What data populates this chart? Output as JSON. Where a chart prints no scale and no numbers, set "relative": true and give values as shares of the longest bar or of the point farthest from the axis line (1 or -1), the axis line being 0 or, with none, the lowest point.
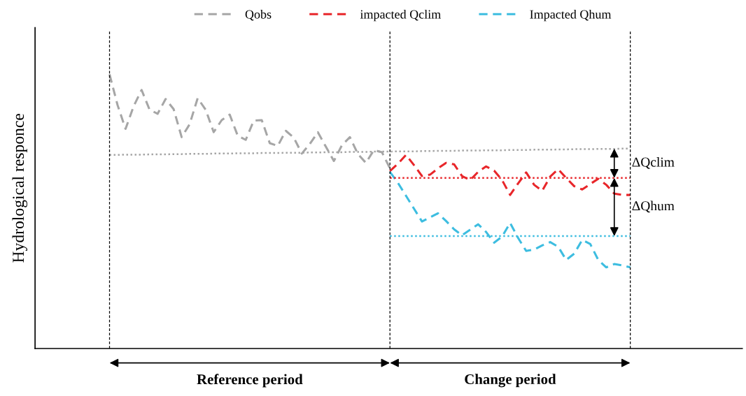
{
  "chart_data": {
    "type": "line",
    "relative": true,
    "ylabel": "Hydrological responce",
    "legend": "top",
    "categories": [
      null,
      null,
      null,
      null,
      null,
      null,
      null,
      null,
      null,
      null,
      null,
      null,
      null,
      null,
      null,
      null,
      null,
      null,
      null,
      null,
      null,
      null,
      null,
      null,
      null,
      null,
      null,
      null,
      null,
      null,
      null,
      null,
      null,
      null,
      null,
      null,
      null,
      null,
      null,
      null,
      null,
      null,
      null,
      null,
      null,
      null,
      null,
      null,
      null,
      null,
      null,
      null,
      null,
      null,
      null,
      null,
      null,
      null,
      null,
      null,
      null,
      null,
      null,
      null,
      null,
      null
    ],
    "series": [
      {
        "name": "Qobs",
        "color": "#a6a6a6",
        "line_style": "dashed",
        "values": [
          1.0,
          0.888,
          0.801,
          0.883,
          0.943,
          0.871,
          0.856,
          0.91,
          0.873,
          0.771,
          0.818,
          0.913,
          0.871,
          0.789,
          0.833,
          0.853,
          0.776,
          0.761,
          0.831,
          0.833,
          0.749,
          0.739,
          0.794,
          0.769,
          0.711,
          0.746,
          0.789,
          0.736,
          0.684,
          0.741,
          0.771,
          0.709,
          0.677,
          0.724,
          0.716,
          0.657,
          null,
          null,
          null,
          null,
          null,
          null,
          null,
          null,
          null,
          null,
          null,
          null,
          null,
          null,
          null,
          null,
          null,
          null,
          null,
          null,
          null,
          null,
          null,
          null,
          null,
          null,
          null,
          null,
          null,
          null
        ]
      },
      {
        "name": "impacted Qclim",
        "color": "#e8262a",
        "line_style": "dashed",
        "values": [
          null,
          null,
          null,
          null,
          null,
          null,
          null,
          null,
          null,
          null,
          null,
          null,
          null,
          null,
          null,
          null,
          null,
          null,
          null,
          null,
          null,
          null,
          null,
          null,
          null,
          null,
          null,
          null,
          null,
          null,
          null,
          null,
          null,
          null,
          null,
          0.647,
          0.674,
          0.706,
          0.669,
          0.629,
          0.634,
          0.657,
          0.677,
          0.672,
          0.629,
          0.614,
          0.644,
          0.664,
          0.649,
          0.614,
          0.56,
          0.602,
          0.642,
          0.597,
          0.575,
          0.627,
          0.654,
          0.622,
          0.592,
          0.58,
          0.6,
          0.619,
          0.597,
          0.565,
          0.56,
          0.56
        ]
      },
      {
        "name": "Impacted Qhum",
        "color": "#3dbde0",
        "line_style": "dashed",
        "values": [
          null,
          null,
          null,
          null,
          null,
          null,
          null,
          null,
          null,
          null,
          null,
          null,
          null,
          null,
          null,
          null,
          null,
          null,
          null,
          null,
          null,
          null,
          null,
          null,
          null,
          null,
          null,
          null,
          null,
          null,
          null,
          null,
          null,
          null,
          null,
          0.644,
          0.604,
          0.557,
          0.51,
          0.463,
          0.478,
          0.493,
          0.465,
          0.435,
          0.413,
          0.433,
          0.453,
          0.425,
          0.386,
          0.408,
          0.458,
          0.403,
          0.356,
          0.361,
          0.376,
          0.388,
          0.371,
          0.323,
          0.346,
          0.396,
          0.381,
          0.323,
          0.296,
          0.308,
          0.303,
          0.296
        ]
      },
      {
        "color": "#a6a6a6",
        "line_style": "dotted",
        "values": [
          0.706,
          0.706,
          0.707,
          0.707,
          0.707,
          0.708,
          0.708,
          0.708,
          0.709,
          0.709,
          0.71,
          0.71,
          0.71,
          0.711,
          0.711,
          0.711,
          0.712,
          0.712,
          0.712,
          0.713,
          0.713,
          0.713,
          0.714,
          0.714,
          0.714,
          0.715,
          0.715,
          0.716,
          0.716,
          0.716,
          0.717,
          0.717,
          0.717,
          0.718,
          0.718,
          0.718,
          0.719,
          0.719,
          0.719,
          0.72,
          0.72,
          0.721,
          0.721,
          0.721,
          0.722,
          0.722,
          0.722,
          0.723,
          0.723,
          0.723,
          0.724,
          0.724,
          0.724,
          0.725,
          0.725,
          0.725,
          0.726,
          0.726,
          0.727,
          0.727,
          0.727,
          0.728,
          0.728,
          0.728,
          0.729,
          0.729
        ]
      },
      {
        "color": "#e8262a",
        "line_style": "dotted",
        "values": [
          null,
          null,
          null,
          null,
          null,
          null,
          null,
          null,
          null,
          null,
          null,
          null,
          null,
          null,
          null,
          null,
          null,
          null,
          null,
          null,
          null,
          null,
          null,
          null,
          null,
          null,
          null,
          null,
          null,
          null,
          null,
          null,
          null,
          null,
          null,
          0.622,
          0.622,
          0.622,
          0.622,
          0.622,
          0.622,
          0.622,
          0.622,
          0.622,
          0.622,
          0.622,
          0.622,
          0.622,
          0.622,
          0.622,
          0.622,
          0.622,
          0.622,
          0.622,
          0.622,
          0.622,
          0.622,
          0.622,
          0.622,
          0.622,
          0.622,
          0.622,
          0.622,
          0.622,
          0.622,
          0.622
        ]
      },
      {
        "color": "#3dbde0",
        "line_style": "dotted",
        "values": [
          null,
          null,
          null,
          null,
          null,
          null,
          null,
          null,
          null,
          null,
          null,
          null,
          null,
          null,
          null,
          null,
          null,
          null,
          null,
          null,
          null,
          null,
          null,
          null,
          null,
          null,
          null,
          null,
          null,
          null,
          null,
          null,
          null,
          null,
          null,
          0.41,
          0.41,
          0.41,
          0.41,
          0.41,
          0.41,
          0.41,
          0.41,
          0.41,
          0.41,
          0.41,
          0.41,
          0.41,
          0.41,
          0.41,
          0.41,
          0.41,
          0.41,
          0.41,
          0.41,
          0.41,
          0.41,
          0.41,
          0.41,
          0.41,
          0.41,
          0.41,
          0.41,
          0.41,
          0.41,
          0.41
        ]
      }
    ],
    "grid": "x",
    "annotations": [
      "ΔQclim",
      "ΔQhum",
      "Reference period",
      "Change period"
    ]
  }
}
